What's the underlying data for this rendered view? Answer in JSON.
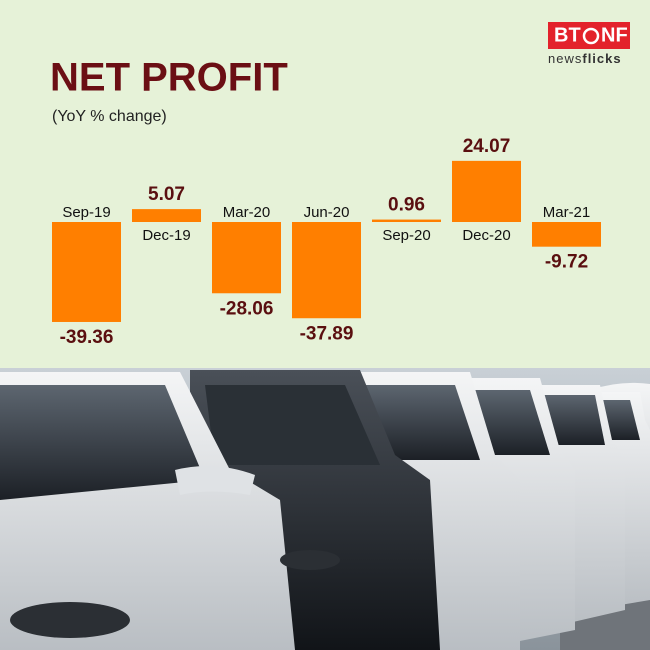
{
  "chart_data": {
    "type": "bar",
    "title": "NET PROFIT",
    "subtitle": "(YoY % change)",
    "categories": [
      "Sep-19",
      "Dec-19",
      "Mar-20",
      "Jun-20",
      "Sep-20",
      "Dec-20",
      "Mar-21"
    ],
    "values": [
      -39.36,
      5.07,
      -28.06,
      -37.89,
      0.96,
      24.07,
      -9.72
    ],
    "color": "#ff7f00",
    "grid": false
  },
  "logo": {
    "left": "BT",
    "right": "NF",
    "tagline_light": "news",
    "tagline_bold": "flicks"
  }
}
